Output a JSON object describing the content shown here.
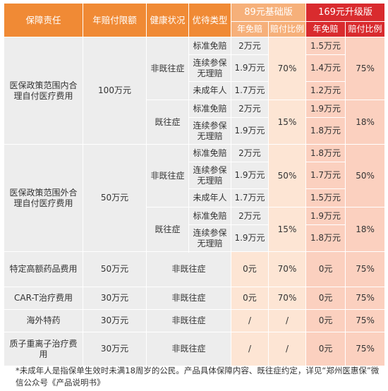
{
  "header": {
    "col_coverage": "保障责任",
    "col_limit": "年赔付限额",
    "col_health": "健康状况",
    "col_type": "优待类型",
    "basic_plan": "89元基础版",
    "upgrade_plan": "169元升级版",
    "deductible": "年免赔",
    "ratio": "赔付比例"
  },
  "sections": {
    "inner": {
      "title": "医保政策范围内合理自付医疗费用",
      "limit": "100万元",
      "non_preexisting": "非既往症",
      "preexisting": "既往症",
      "rows": [
        {
          "type": "标准免赔",
          "b_ded": "2万元",
          "u_ded": "1.5万元"
        },
        {
          "type": "连续参保无理赔",
          "b_ded": "1.9万元",
          "u_ded": "1.4万元"
        },
        {
          "type": "未成年人",
          "b_ded": "1.7万元",
          "u_ded": "1.2万元"
        },
        {
          "type": "标准免赔",
          "b_ded": "2万元",
          "u_ded": "1.9万元"
        },
        {
          "type": "连续参保无理赔",
          "b_ded": "1.9万元",
          "u_ded": "1.8万元"
        }
      ],
      "b_ratio_non": "70%",
      "u_ratio_non": "75%",
      "b_ratio_pre": "15%",
      "u_ratio_pre": "18%"
    },
    "outer": {
      "title": "医保政策范围外合理自付医疗费用",
      "limit": "50万元",
      "non_preexisting": "非既往症",
      "preexisting": "既往症",
      "rows": [
        {
          "type": "标准免赔",
          "b_ded": "2万元",
          "u_ded": "1.8万元"
        },
        {
          "type": "连续参保无理赔",
          "b_ded": "1.9万元",
          "u_ded": "1.7万元"
        },
        {
          "type": "未成年人",
          "b_ded": "1.7万元",
          "u_ded": "1.5万元"
        },
        {
          "type": "标准免赔",
          "b_ded": "2万元",
          "u_ded": "1.9万元"
        },
        {
          "type": "连续参保无理赔",
          "b_ded": "1.9万元",
          "u_ded": "1.8万元"
        }
      ],
      "b_ratio_non": "50%",
      "u_ratio_non": "50%",
      "b_ratio_pre": "15%",
      "u_ratio_pre": "18%"
    }
  },
  "simple_rows": [
    {
      "name": "特定高额药品费用",
      "limit": "50万元",
      "health": "非既往症",
      "b_ded": "0元",
      "b_ratio": "70%",
      "u_ded": "0元",
      "u_ratio": "75%"
    },
    {
      "name": "CAR-T治疗费用",
      "limit": "30万元",
      "health": "非既往症",
      "b_ded": "0元",
      "b_ratio": "70%",
      "u_ded": "0元",
      "u_ratio": "75%"
    },
    {
      "name": "海外特药",
      "limit": "30万元",
      "health": "非既往症",
      "b_ded": "/",
      "b_ratio": "/",
      "u_ded": "0元",
      "u_ratio": "75%"
    },
    {
      "name": "质子重离子治疗费用",
      "limit": "30万元",
      "health": "非既往症",
      "b_ded": "/",
      "b_ratio": "/",
      "u_ded": "0元",
      "u_ratio": "75%"
    }
  ],
  "footnote": "*未成年人是指保单生效时未满18周岁的公民。产品具体保障内容、既往症约定，详见“郑州医惠保”微信公众号《产品说明书》"
}
